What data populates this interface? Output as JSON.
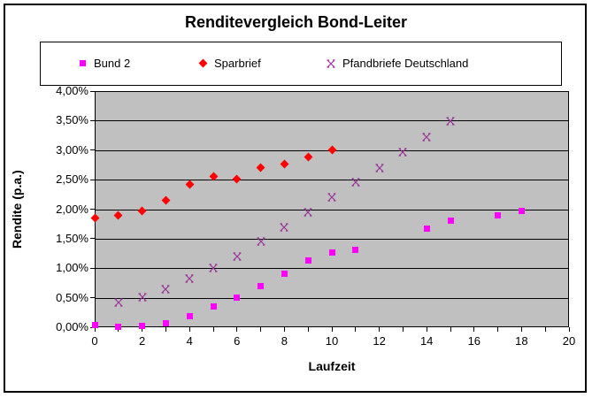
{
  "window": {
    "background": "#FFFFFF",
    "border_color": "#000000"
  },
  "chart_data": {
    "type": "scatter",
    "title": "Renditevergleich Bond-Leiter",
    "xlabel": "Laufzeit",
    "ylabel": "Rendite (p.a.)",
    "xlim": [
      0,
      20
    ],
    "ylim": [
      0,
      4
    ],
    "x_minor_tick_step": 1,
    "x_major_tick_step": 2,
    "y_tick_step": 0.5,
    "x_tick_labels": [
      "0",
      "2",
      "4",
      "6",
      "8",
      "10",
      "12",
      "14",
      "16",
      "18",
      "20"
    ],
    "y_tick_labels": [
      "0,00%",
      "0,50%",
      "1,00%",
      "1,50%",
      "2,00%",
      "2,50%",
      "3,00%",
      "3,50%",
      "4,00%"
    ],
    "grid": "horizontal-major-only",
    "plot_bg": "#C0C0C0",
    "gridline_color": "#000000",
    "legend_position": "top",
    "series": [
      {
        "name": "Bund 2",
        "marker": "square",
        "color": "#FF00FF",
        "points": [
          [
            0,
            0.03
          ],
          [
            1,
            0.01
          ],
          [
            2,
            0.02
          ],
          [
            3,
            0.06
          ],
          [
            4,
            0.18
          ],
          [
            5,
            0.35
          ],
          [
            6,
            0.5
          ],
          [
            7,
            0.7
          ],
          [
            8,
            0.9
          ],
          [
            9,
            1.13
          ],
          [
            10,
            1.26
          ],
          [
            11,
            1.31
          ],
          [
            14,
            1.67
          ],
          [
            15,
            1.81
          ],
          [
            17,
            1.9
          ],
          [
            18,
            1.97
          ]
        ]
      },
      {
        "name": "Sparbrief",
        "marker": "diamond",
        "color": "#FF0000",
        "points": [
          [
            0,
            1.85
          ],
          [
            1,
            1.9
          ],
          [
            2,
            1.97
          ],
          [
            3,
            2.15
          ],
          [
            4,
            2.42
          ],
          [
            5,
            2.56
          ],
          [
            6,
            2.51
          ],
          [
            7,
            2.71
          ],
          [
            8,
            2.77
          ],
          [
            9,
            2.89
          ],
          [
            10,
            3.0
          ]
        ]
      },
      {
        "name": "Pfandbriefe Deutschland",
        "marker": "x",
        "color": "#993399",
        "points": [
          [
            1,
            0.42
          ],
          [
            2,
            0.51
          ],
          [
            3,
            0.65
          ],
          [
            4,
            0.82
          ],
          [
            5,
            1.0
          ],
          [
            6,
            1.2
          ],
          [
            7,
            1.46
          ],
          [
            8,
            1.7
          ],
          [
            9,
            1.95
          ],
          [
            10,
            2.2
          ],
          [
            11,
            2.45
          ],
          [
            12,
            2.7
          ],
          [
            13,
            2.97
          ],
          [
            14,
            3.22
          ],
          [
            15,
            3.49
          ]
        ]
      }
    ]
  }
}
